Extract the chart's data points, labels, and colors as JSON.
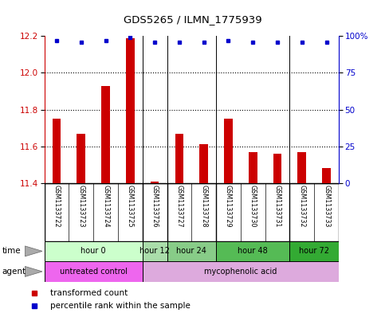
{
  "title": "GDS5265 / ILMN_1775939",
  "samples": [
    "GSM1133722",
    "GSM1133723",
    "GSM1133724",
    "GSM1133725",
    "GSM1133726",
    "GSM1133727",
    "GSM1133728",
    "GSM1133729",
    "GSM1133730",
    "GSM1133731",
    "GSM1133732",
    "GSM1133733"
  ],
  "bar_values": [
    11.75,
    11.67,
    11.93,
    12.19,
    11.41,
    11.67,
    11.61,
    11.75,
    11.57,
    11.56,
    11.57,
    11.48
  ],
  "percentile_values": [
    97,
    96,
    97,
    99,
    96,
    96,
    96,
    97,
    96,
    96,
    96,
    96
  ],
  "bar_color": "#cc0000",
  "percentile_color": "#0000cc",
  "ylim_left": [
    11.4,
    12.2
  ],
  "ylim_right": [
    0,
    100
  ],
  "yticks_left": [
    11.4,
    11.6,
    11.8,
    12.0,
    12.2
  ],
  "yticks_right": [
    0,
    25,
    50,
    75,
    100
  ],
  "hline_values": [
    11.6,
    11.8,
    12.0
  ],
  "time_groups": [
    {
      "label": "hour 0",
      "start": 0,
      "end": 4,
      "color": "#ccffcc"
    },
    {
      "label": "hour 12",
      "start": 4,
      "end": 5,
      "color": "#aaddaa"
    },
    {
      "label": "hour 24",
      "start": 5,
      "end": 7,
      "color": "#88cc88"
    },
    {
      "label": "hour 48",
      "start": 7,
      "end": 10,
      "color": "#55bb55"
    },
    {
      "label": "hour 72",
      "start": 10,
      "end": 12,
      "color": "#33aa33"
    }
  ],
  "agent_groups": [
    {
      "label": "untreated control",
      "start": 0,
      "end": 4,
      "color": "#ee66ee"
    },
    {
      "label": "mycophenolic acid",
      "start": 4,
      "end": 12,
      "color": "#ddaadd"
    }
  ],
  "group_boundaries": [
    4,
    5,
    7,
    10
  ],
  "time_row_label": "time",
  "agent_row_label": "agent",
  "legend_bar_label": "transformed count",
  "legend_pct_label": "percentile rank within the sample",
  "background_color": "#ffffff",
  "left_axis_color": "#cc0000",
  "right_axis_color": "#0000cc",
  "grid_color": "#000000",
  "sample_bg_color": "#cccccc"
}
